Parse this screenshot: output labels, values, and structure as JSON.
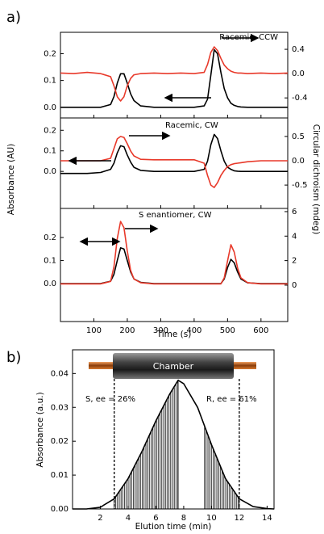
{
  "chart_data": [
    {
      "type": "line",
      "panel_label": "a)",
      "ylabel": "Absorbance (AU)",
      "y2label": "Circular dichroism (mdeg)",
      "annotation": "Racemic, CCW",
      "x": [
        0,
        40,
        80,
        120,
        150,
        160,
        170,
        180,
        190,
        200,
        210,
        220,
        240,
        280,
        320,
        360,
        400,
        430,
        440,
        450,
        460,
        470,
        480,
        490,
        500,
        510,
        520,
        530,
        540,
        560,
        600,
        640,
        680
      ],
      "xlim": [
        0,
        680
      ],
      "xticks": [
        100,
        200,
        300,
        400,
        500,
        600
      ],
      "ylim": [
        -0.04,
        0.28
      ],
      "yticks": [
        {
          "value": 0,
          "label": "0.0"
        },
        0.1,
        0.2
      ],
      "y2lim": [
        -0.73,
        0.68
      ],
      "y2ticks": [
        -0.4,
        {
          "value": 0,
          "label": "0.0"
        },
        0.4
      ],
      "series": [
        {
          "name": "Absorbance",
          "color": "#000000",
          "values": [
            0,
            0,
            0,
            0,
            0.01,
            0.04,
            0.09,
            0.125,
            0.125,
            0.09,
            0.05,
            0.025,
            0.005,
            0,
            0,
            0,
            0,
            0.005,
            0.03,
            0.12,
            0.215,
            0.2,
            0.13,
            0.07,
            0.035,
            0.015,
            0.007,
            0.003,
            0.001,
            0,
            0,
            0,
            0
          ]
        },
        {
          "name": "Circular dichroism",
          "color": "#e8392a",
          "axis": "y2",
          "values": [
            0.01,
            0.0,
            0.02,
            0.0,
            -0.05,
            -0.2,
            -0.38,
            -0.45,
            -0.38,
            -0.2,
            -0.08,
            -0.02,
            0.0,
            0.01,
            0.0,
            0.01,
            0.0,
            0.02,
            0.15,
            0.35,
            0.44,
            0.38,
            0.25,
            0.14,
            0.08,
            0.04,
            0.02,
            0.01,
            0.01,
            0.0,
            0.01,
            0.0,
            0.01
          ]
        }
      ]
    },
    {
      "type": "line",
      "annotation": "Racemic, CW",
      "x": [
        0,
        40,
        80,
        120,
        150,
        160,
        170,
        180,
        190,
        200,
        210,
        220,
        240,
        280,
        320,
        360,
        400,
        430,
        440,
        450,
        460,
        470,
        480,
        490,
        500,
        510,
        520,
        530,
        540,
        560,
        600,
        640,
        680
      ],
      "xlim": [
        0,
        680
      ],
      "xticks": [
        100,
        200,
        300,
        400,
        500,
        600
      ],
      "ylim": [
        -0.18,
        0.26
      ],
      "yticks": [
        {
          "value": 0,
          "label": "0.0"
        },
        0.1,
        0.2
      ],
      "y2lim": [
        -0.98,
        0.88
      ],
      "y2ticks": [
        -0.5,
        {
          "value": 0,
          "label": "0.0"
        },
        0.5
      ],
      "series": [
        {
          "name": "Absorbance",
          "color": "#000000",
          "values": [
            -0.01,
            -0.01,
            -0.01,
            -0.005,
            0.01,
            0.04,
            0.09,
            0.125,
            0.12,
            0.08,
            0.045,
            0.02,
            0.005,
            0,
            0,
            0,
            0,
            0.01,
            0.05,
            0.13,
            0.18,
            0.16,
            0.1,
            0.05,
            0.02,
            0.01,
            0.003,
            0.001,
            0,
            0,
            0,
            0,
            0
          ]
        },
        {
          "name": "Circular dichroism",
          "color": "#e8392a",
          "axis": "y2",
          "values": [
            0.0,
            0.0,
            0.0,
            0.0,
            0.05,
            0.25,
            0.45,
            0.5,
            0.48,
            0.35,
            0.2,
            0.1,
            0.03,
            0.02,
            0.02,
            0.02,
            0.02,
            -0.05,
            -0.3,
            -0.5,
            -0.55,
            -0.45,
            -0.3,
            -0.2,
            -0.12,
            -0.08,
            -0.06,
            -0.05,
            -0.04,
            -0.02,
            0.0,
            0.0,
            0.0
          ]
        }
      ]
    },
    {
      "type": "line",
      "annotation": "S enantiomer, CW",
      "xlabel": "Time (s)",
      "x": [
        0,
        40,
        80,
        120,
        150,
        160,
        170,
        180,
        190,
        200,
        210,
        220,
        240,
        280,
        320,
        360,
        400,
        430,
        440,
        450,
        460,
        470,
        480,
        490,
        500,
        510,
        520,
        530,
        540,
        560,
        600,
        640,
        680
      ],
      "xlim": [
        0,
        680
      ],
      "xticks": [
        100,
        200,
        300,
        400,
        500,
        600
      ],
      "ylim": [
        -0.165,
        0.326
      ],
      "yticks": [
        {
          "value": 0,
          "label": "0.0"
        },
        0.1,
        0.2
      ],
      "y2lim": [
        -2.97,
        6.26
      ],
      "y2ticks": [
        0,
        2,
        4,
        6
      ],
      "series": [
        {
          "name": "Absorbance",
          "color": "#000000",
          "values": [
            0,
            0,
            0,
            0,
            0.01,
            0.04,
            0.1,
            0.155,
            0.15,
            0.1,
            0.05,
            0.02,
            0.005,
            0,
            0,
            0,
            0,
            0,
            0,
            0,
            0,
            0,
            0,
            0.02,
            0.07,
            0.105,
            0.09,
            0.05,
            0.02,
            0.003,
            0,
            0,
            0
          ]
        },
        {
          "name": "Circular dichroism",
          "color": "#e8392a",
          "axis": "y2",
          "values": [
            0.1,
            0.1,
            0.1,
            0.1,
            0.3,
            1.5,
            3.8,
            5.2,
            4.7,
            2.8,
            1.2,
            0.5,
            0.2,
            0.1,
            0.1,
            0.1,
            0.1,
            0.1,
            0.1,
            0.1,
            0.1,
            0.1,
            0.1,
            0.6,
            2.0,
            3.3,
            2.7,
            1.4,
            0.6,
            0.2,
            0.1,
            0.1,
            0.1
          ]
        }
      ]
    },
    {
      "type": "line",
      "panel_label": "b)",
      "xlabel": "Elution time (min)",
      "ylabel": "Absorbance (a.u.)",
      "annotation": "Chamber",
      "x": [
        0,
        1,
        2,
        3,
        4,
        5,
        6,
        7,
        7.6,
        8,
        9,
        10,
        11,
        12,
        13,
        14,
        14.5
      ],
      "xlim": [
        0,
        14.5
      ],
      "xticks": [
        2,
        4,
        6,
        8,
        10,
        12,
        14
      ],
      "ylim": [
        0,
        0.047
      ],
      "yticks": [
        {
          "value": 0,
          "label": "0.00"
        },
        0.01,
        0.02,
        0.03,
        0.04
      ],
      "series": [
        {
          "name": "Absorbance",
          "color": "#000000",
          "values": [
            0,
            0,
            0.0005,
            0.003,
            0.009,
            0.017,
            0.026,
            0.034,
            0.038,
            0.037,
            0.03,
            0.019,
            0.009,
            0.003,
            0.0007,
            0.0001,
            0
          ]
        }
      ],
      "fractions": [
        {
          "label": "S, ee = 26%",
          "range": [
            3.0,
            7.6
          ]
        },
        {
          "label": "R, ee = 61%",
          "range": [
            9.5,
            12.0
          ]
        }
      ]
    }
  ]
}
